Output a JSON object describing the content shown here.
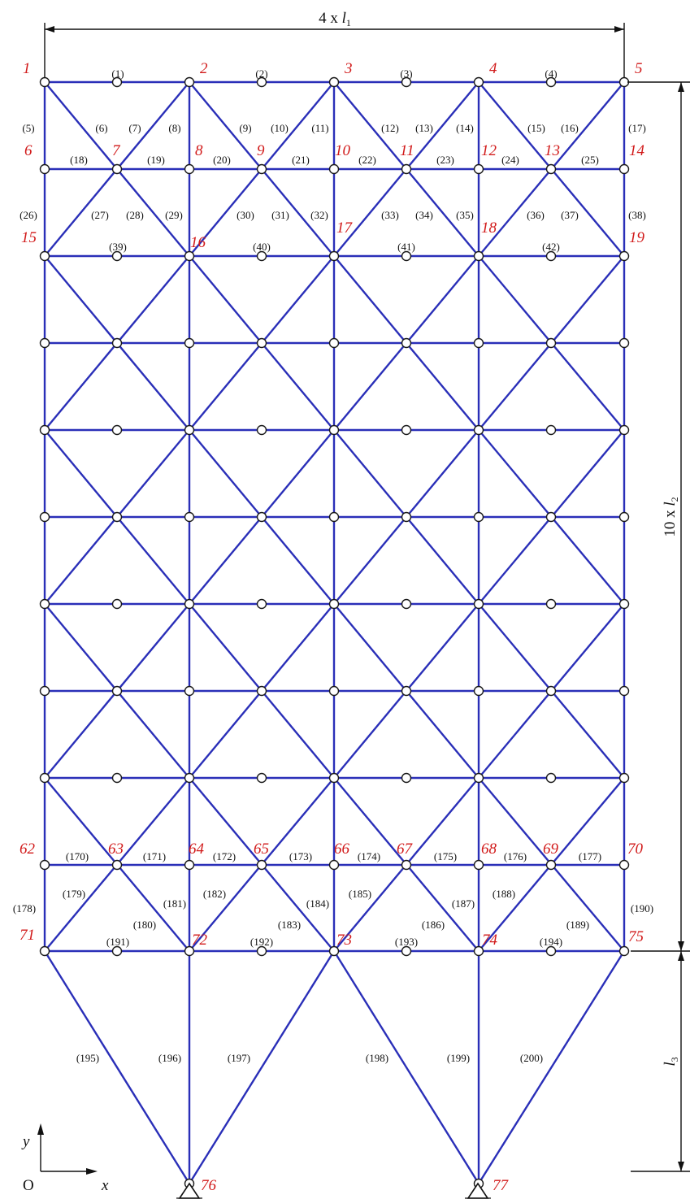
{
  "dimensions": {
    "width_label": "4 x l1",
    "width_label_main": "4 x ",
    "width_label_sym": "l",
    "width_label_sub": "1",
    "height_label": "10 x l2",
    "height_label_main": "10 x ",
    "height_label_sym": "l",
    "height_label_sub": "2",
    "leg_label": "l3",
    "leg_label_sym": "l",
    "leg_label_sub": "3"
  },
  "axes": {
    "origin": "O",
    "x": "x",
    "y": "y"
  },
  "node_labels": [
    "1",
    "2",
    "3",
    "4",
    "5",
    "6",
    "7",
    "8",
    "9",
    "10",
    "11",
    "12",
    "13",
    "14",
    "15",
    "16",
    "17",
    "18",
    "19",
    "62",
    "63",
    "64",
    "65",
    "66",
    "67",
    "68",
    "69",
    "70",
    "71",
    "72",
    "73",
    "74",
    "75",
    "76",
    "77"
  ],
  "member_labels": [
    "(1)",
    "(2)",
    "(3)",
    "(4)",
    "(5)",
    "(6)",
    "(7)",
    "(8)",
    "(9)",
    "(10)",
    "(11)",
    "(12)",
    "(13)",
    "(14)",
    "(15)",
    "(16)",
    "(17)",
    "(18)",
    "(19)",
    "(20)",
    "(21)",
    "(22)",
    "(23)",
    "(24)",
    "(25)",
    "(26)",
    "(27)",
    "(28)",
    "(29)",
    "(30)",
    "(31)",
    "(32)",
    "(33)",
    "(34)",
    "(35)",
    "(36)",
    "(37)",
    "(38)",
    "(39)",
    "(40)",
    "(41)",
    "(42)",
    "(170)",
    "(171)",
    "(172)",
    "(173)",
    "(174)",
    "(175)",
    "(176)",
    "(177)",
    "(178)",
    "(179)",
    "(180)",
    "(181)",
    "(182)",
    "(183)",
    "(184)",
    "(185)",
    "(186)",
    "(187)",
    "(188)",
    "(189)",
    "(190)",
    "(191)",
    "(192)",
    "(193)",
    "(194)",
    "(195)",
    "(196)",
    "(197)",
    "(198)",
    "(199)",
    "(200)"
  ],
  "colors": {
    "member": "#2a2fb8",
    "node_label": "#d11a1a",
    "text": "#111111"
  }
}
